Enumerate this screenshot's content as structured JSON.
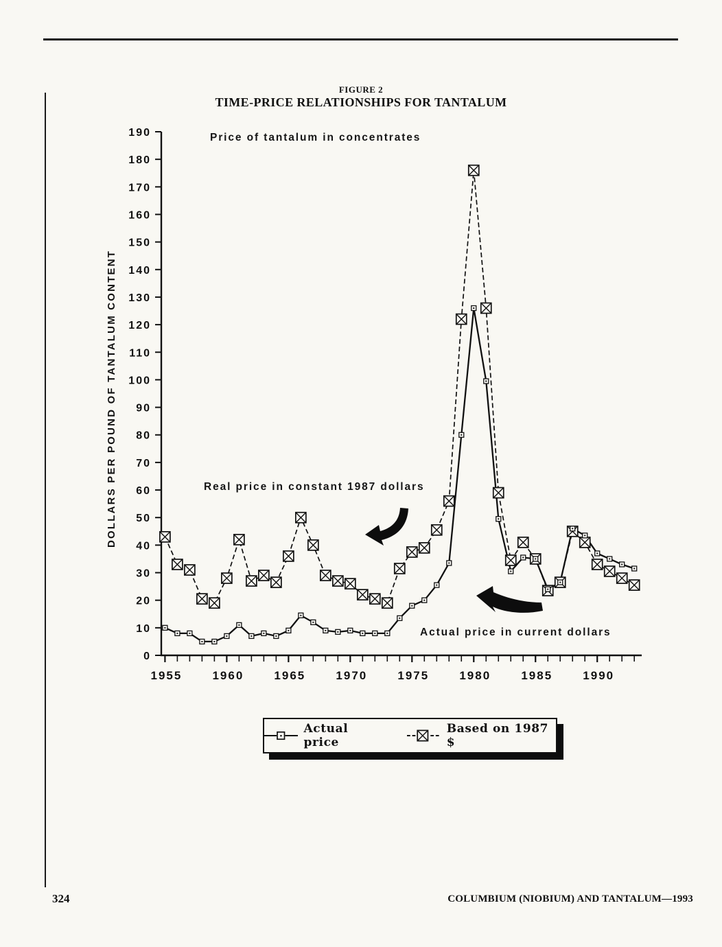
{
  "page": {
    "page_number": "324",
    "footer_right": "COLUMBIUM (NIOBIUM) AND TANTALUM—1993",
    "background": "#f9f8f3",
    "ink_color": "#111111"
  },
  "figure": {
    "label": "FIGURE 2",
    "title": "TIME-PRICE RELATIONSHIPS FOR TANTALUM"
  },
  "chart_data": {
    "type": "line",
    "title": "TIME-PRICE RELATIONSHIPS FOR TANTALUM",
    "xlabel": "",
    "ylabel": "DOLLARS PER POUND OF TANTALUM CONTENT",
    "ylim": [
      0,
      190
    ],
    "y_tick_step": 10,
    "xlim": [
      1954.7,
      1993.6
    ],
    "x_major_ticks": [
      1955,
      1960,
      1965,
      1970,
      1975,
      1980,
      1985,
      1990
    ],
    "x_minor_tick_step": 1,
    "grid": false,
    "legend_position": "bottom",
    "x": [
      1955,
      1956,
      1957,
      1958,
      1959,
      1960,
      1961,
      1962,
      1963,
      1964,
      1965,
      1966,
      1967,
      1968,
      1969,
      1970,
      1971,
      1972,
      1973,
      1974,
      1975,
      1976,
      1977,
      1978,
      1979,
      1980,
      1981,
      1982,
      1983,
      1984,
      1985,
      1986,
      1987,
      1988,
      1989,
      1990,
      1991,
      1992,
      1993
    ],
    "series": [
      {
        "name": "Actual price",
        "line": "solid",
        "marker": "square",
        "values": [
          10,
          8,
          8,
          5,
          5,
          7,
          11,
          7,
          8,
          7,
          9,
          14.5,
          12,
          9,
          8.5,
          9,
          8,
          8,
          8,
          13.5,
          18,
          20,
          25.5,
          33.5,
          80,
          126,
          99.5,
          49.5,
          30.5,
          35.5,
          35,
          24,
          26.5,
          46,
          43.5,
          37,
          35,
          33,
          31.5
        ]
      },
      {
        "name": "Based on 1987 $",
        "line": "dashed",
        "marker": "boxed-x",
        "values": [
          43,
          33,
          31,
          20.5,
          19,
          28,
          42,
          27,
          29,
          26.5,
          36,
          50,
          40,
          29,
          27,
          26,
          22,
          20.5,
          19,
          31.5,
          37.5,
          39,
          45.5,
          56,
          122,
          176,
          126,
          59,
          34.5,
          41,
          35,
          23.5,
          26.5,
          45,
          41,
          33,
          30.5,
          28,
          25.5
        ]
      }
    ],
    "annotations": {
      "top": "Price of tantalum in concentrates",
      "real": "Real price in constant 1987 dollars",
      "actual": "Actual price in current dollars"
    }
  },
  "legend": {
    "actual_label": "Actual price",
    "based_label": "Based on 1987 $"
  }
}
